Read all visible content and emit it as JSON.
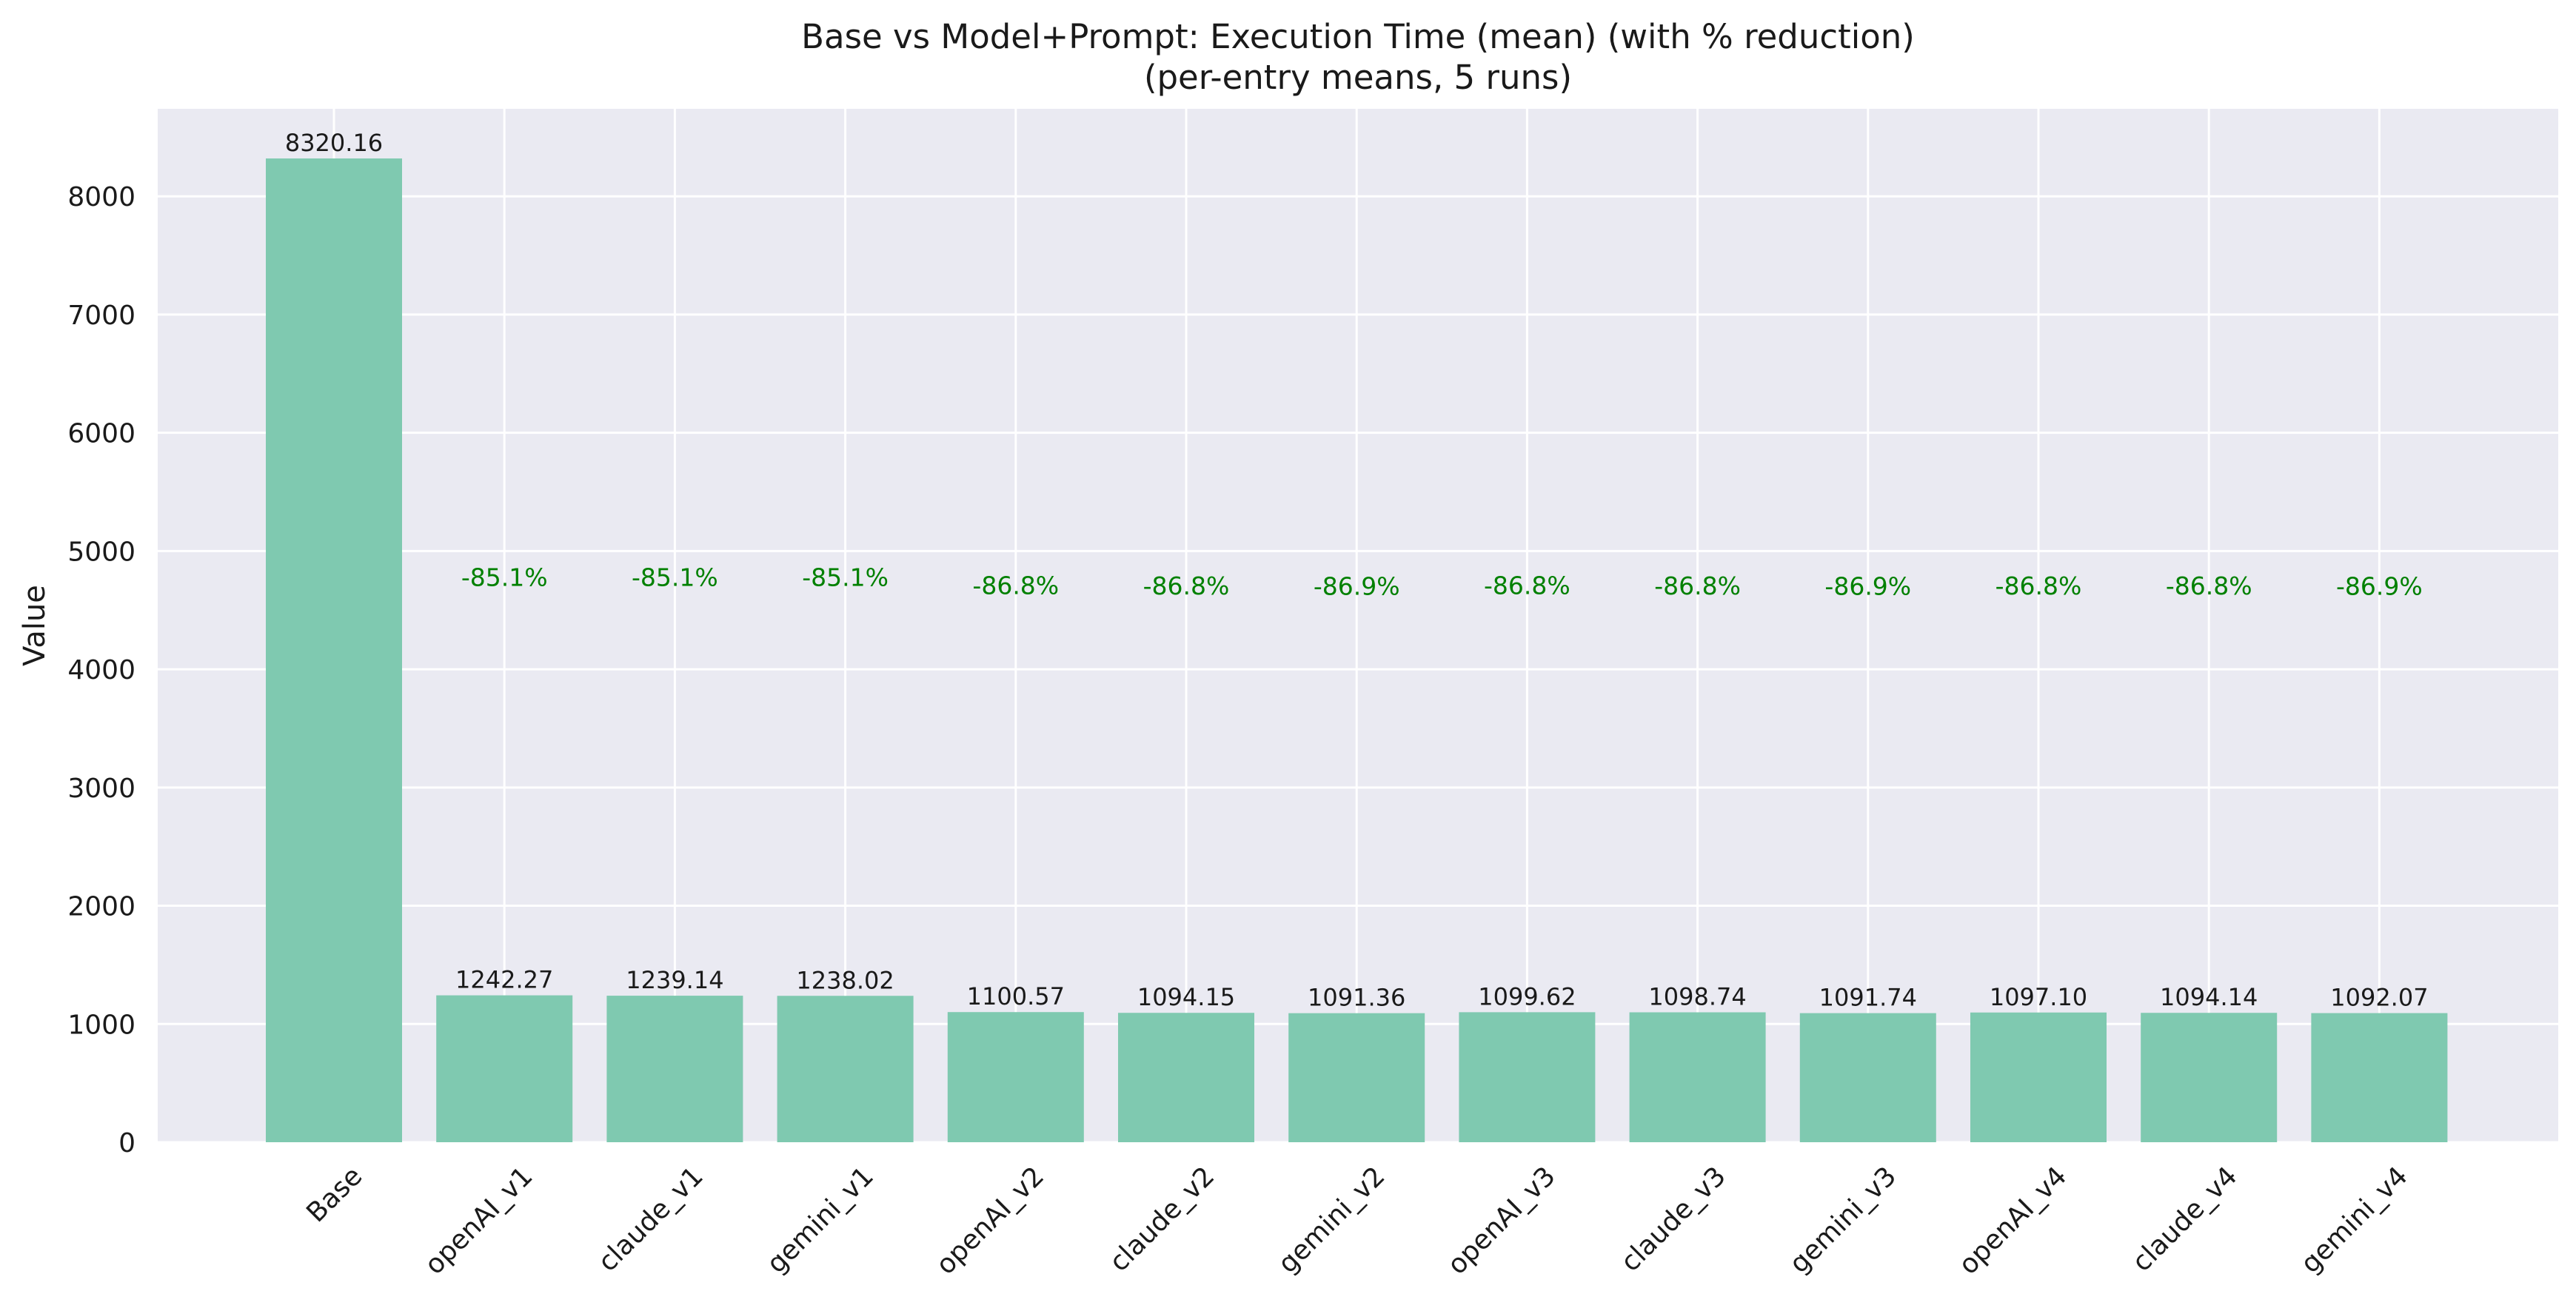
{
  "chart_data": {
    "type": "bar",
    "title": "Base vs Model+Prompt: Execution Time (mean) (with % reduction)",
    "subtitle": "(per-entry means, 5 runs)",
    "xlabel": "",
    "ylabel": "Value",
    "ylim": [
      0,
      8740
    ],
    "yticks": [
      0,
      1000,
      2000,
      3000,
      4000,
      5000,
      6000,
      7000,
      8000
    ],
    "grid": true,
    "legend": "none",
    "categories": [
      "Base",
      "openAI_v1",
      "claude_v1",
      "gemini_v1",
      "openAI_v2",
      "claude_v2",
      "gemini_v2",
      "openAI_v3",
      "claude_v3",
      "gemini_v3",
      "openAI_v4",
      "claude_v4",
      "gemini_v4"
    ],
    "values": [
      8320.16,
      1242.27,
      1239.14,
      1238.02,
      1100.57,
      1094.15,
      1091.36,
      1099.62,
      1098.74,
      1091.74,
      1097.1,
      1094.14,
      1092.07
    ],
    "value_labels": [
      "8320.16",
      "1242.27",
      "1239.14",
      "1238.02",
      "1100.57",
      "1094.15",
      "1091.36",
      "1099.62",
      "1098.74",
      "1091.74",
      "1097.10",
      "1094.14",
      "1092.07"
    ],
    "pct_labels": [
      "",
      "-85.1%",
      "-85.1%",
      "-85.1%",
      "-86.8%",
      "-86.8%",
      "-86.9%",
      "-86.8%",
      "-86.8%",
      "-86.9%",
      "-86.8%",
      "-86.8%",
      "-86.9%"
    ],
    "colors": {
      "bar": "#7fc9b0",
      "plot_background": "#eaeaf2",
      "grid": "#ffffff",
      "pct_text": "#008000",
      "text": "#1a1a1a"
    }
  }
}
